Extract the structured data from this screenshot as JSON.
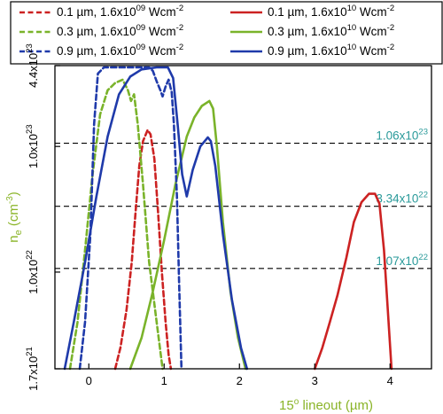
{
  "chart_data": {
    "type": "line",
    "xlabel_main": "15",
    "xlabel_sup": "o",
    "xlabel_rest": " lineout (µm)",
    "xlabel_color": "#8ab428",
    "ylabel_main": "n",
    "ylabel_sub": "e",
    "ylabel_unit": " (cm",
    "ylabel_unit_sup": "-3",
    "ylabel_end": ")",
    "ylabel_color": "#8ab428",
    "xlim": [
      -0.45,
      4.55
    ],
    "ylim": [
      1.7e+21,
      4.4e+23
    ],
    "yscale": "log",
    "x_ticks": [
      {
        "value": 0,
        "label": "0"
      },
      {
        "value": 1,
        "label": "1"
      },
      {
        "value": 2,
        "label": "2"
      },
      {
        "value": 3,
        "label": "3"
      },
      {
        "value": 4,
        "label": "4"
      }
    ],
    "y_ticks": [
      {
        "value": 1.7e+21,
        "mant": "1.7x10",
        "exp": "21"
      },
      {
        "value": 1e+22,
        "mant": "1.0x10",
        "exp": "22"
      },
      {
        "value": 1e+23,
        "mant": "1.0x10",
        "exp": "23"
      },
      {
        "value": 4.4e+23,
        "mant": "4.4x10",
        "exp": "23"
      }
    ],
    "reference_lines": [
      {
        "value": 1.06e+23,
        "mant": "1.06x10",
        "exp": "23"
      },
      {
        "value": 3.34e+22,
        "mant": "3.34x10",
        "exp": "22"
      },
      {
        "value": 1.07e+22,
        "mant": "1.07x10",
        "exp": "22"
      }
    ],
    "reference_color": "#2a9a9a",
    "legend": {
      "placement": "top",
      "columns": 2
    },
    "series": [
      {
        "name_main": "0.1 µm, 1.6x10",
        "name_exp": "09",
        "name_unit": " Wcm",
        "name_unit_exp": "-2",
        "color": "#cc2222",
        "dash": true,
        "points": [
          [
            0.35,
            1.7e+21
          ],
          [
            0.42,
            2.5e+21
          ],
          [
            0.5,
            5e+21
          ],
          [
            0.57,
            1.2e+22
          ],
          [
            0.62,
            3e+22
          ],
          [
            0.67,
            7e+22
          ],
          [
            0.72,
            1.1e+23
          ],
          [
            0.78,
            1.35e+23
          ],
          [
            0.82,
            1.25e+23
          ],
          [
            0.87,
            8e+22
          ],
          [
            0.92,
            3e+22
          ],
          [
            0.97,
            1e+22
          ],
          [
            1.02,
            4e+21
          ],
          [
            1.06,
            2.2e+21
          ],
          [
            1.09,
            1.7e+21
          ]
        ]
      },
      {
        "name_main": "0.1 µm, 1.6x10",
        "name_exp": "10",
        "name_unit": " Wcm",
        "name_unit_exp": "-2",
        "color": "#cc2222",
        "dash": false,
        "points": [
          [
            3.0,
            1.7e+21
          ],
          [
            3.1,
            2.5e+21
          ],
          [
            3.2,
            4e+21
          ],
          [
            3.3,
            6.5e+21
          ],
          [
            3.42,
            1.3e+22
          ],
          [
            3.52,
            2.5e+22
          ],
          [
            3.62,
            3.6e+22
          ],
          [
            3.72,
            4.2e+22
          ],
          [
            3.8,
            4.2e+22
          ],
          [
            3.86,
            3.5e+22
          ],
          [
            3.92,
            1.5e+22
          ],
          [
            3.97,
            5e+21
          ],
          [
            4.02,
            1.7e+21
          ]
        ]
      },
      {
        "name_main": "0.3 µm, 1.6x10",
        "name_exp": "09",
        "name_unit": " Wcm",
        "name_unit_exp": "-2",
        "color": "#7ab32a",
        "dash": true,
        "points": [
          [
            -0.25,
            1.7e+21
          ],
          [
            -0.15,
            4e+21
          ],
          [
            -0.05,
            1.5e+22
          ],
          [
            0.05,
            6e+22
          ],
          [
            0.15,
            1.8e+23
          ],
          [
            0.25,
            2.8e+23
          ],
          [
            0.35,
            3.2e+23
          ],
          [
            0.45,
            3.4e+23
          ],
          [
            0.52,
            2.8e+23
          ],
          [
            0.56,
            2.3e+23
          ],
          [
            0.6,
            2.6e+23
          ],
          [
            0.65,
            1.5e+23
          ],
          [
            0.72,
            5e+22
          ],
          [
            0.8,
            1.2e+22
          ],
          [
            0.9,
            4e+21
          ],
          [
            0.98,
            1.7e+21
          ]
        ]
      },
      {
        "name_main": "0.3 µm, 1.6x10",
        "name_exp": "10",
        "name_unit": " Wcm",
        "name_unit_exp": "-2",
        "color": "#7ab32a",
        "dash": false,
        "points": [
          [
            0.55,
            1.7e+21
          ],
          [
            0.7,
            3e+21
          ],
          [
            0.85,
            7e+21
          ],
          [
            1.0,
            1.8e+22
          ],
          [
            1.15,
            5e+22
          ],
          [
            1.3,
            1.2e+23
          ],
          [
            1.4,
            1.7e+23
          ],
          [
            1.5,
            2.1e+23
          ],
          [
            1.6,
            2.3e+23
          ],
          [
            1.65,
            2e+23
          ],
          [
            1.7,
            1e+23
          ],
          [
            1.78,
            2.5e+22
          ],
          [
            1.88,
            7e+21
          ],
          [
            1.98,
            3e+21
          ],
          [
            2.08,
            1.7e+21
          ]
        ]
      },
      {
        "name_main": "0.9 µm, 1.6x10",
        "name_exp": "09",
        "name_unit": " Wcm",
        "name_unit_exp": "-2",
        "color": "#1f3aaa",
        "dash": true,
        "points": [
          [
            -0.12,
            1.7e+21
          ],
          [
            -0.05,
            4e+21
          ],
          [
            0.02,
            2e+22
          ],
          [
            0.07,
            1.5e+23
          ],
          [
            0.12,
            3.8e+23
          ],
          [
            0.2,
            4.3e+23
          ],
          [
            0.4,
            4.3e+23
          ],
          [
            0.6,
            4.3e+23
          ],
          [
            0.8,
            4.3e+23
          ],
          [
            0.85,
            4e+23
          ],
          [
            0.9,
            3.3e+23
          ],
          [
            0.95,
            2.8e+23
          ],
          [
            0.98,
            2.5e+23
          ],
          [
            1.02,
            3e+23
          ],
          [
            1.06,
            3.4e+23
          ],
          [
            1.1,
            2.7e+23
          ],
          [
            1.13,
            1.5e+23
          ],
          [
            1.17,
            4e+22
          ],
          [
            1.2,
            8e+21
          ],
          [
            1.23,
            1.7e+21
          ]
        ]
      },
      {
        "name_main": "0.9 µm, 1.6x10",
        "name_exp": "10",
        "name_unit": " Wcm",
        "name_unit_exp": "-2",
        "color": "#1f3aaa",
        "dash": false,
        "points": [
          [
            -0.32,
            1.7e+21
          ],
          [
            -0.2,
            4e+21
          ],
          [
            -0.05,
            1.2e+22
          ],
          [
            0.1,
            4e+22
          ],
          [
            0.25,
            1.2e+23
          ],
          [
            0.4,
            2.6e+23
          ],
          [
            0.55,
            3.6e+23
          ],
          [
            0.7,
            4.1e+23
          ],
          [
            0.9,
            4.3e+23
          ],
          [
            1.05,
            4.3e+23
          ],
          [
            1.12,
            3.5e+23
          ],
          [
            1.18,
            1.5e+23
          ],
          [
            1.24,
            6e+22
          ],
          [
            1.3,
            4e+22
          ],
          [
            1.38,
            6.5e+22
          ],
          [
            1.48,
            1e+23
          ],
          [
            1.58,
            1.18e+23
          ],
          [
            1.62,
            1.1e+23
          ],
          [
            1.68,
            7e+22
          ],
          [
            1.78,
            2e+22
          ],
          [
            1.9,
            6e+21
          ],
          [
            2.02,
            2.5e+21
          ],
          [
            2.1,
            1.7e+21
          ]
        ]
      }
    ]
  }
}
